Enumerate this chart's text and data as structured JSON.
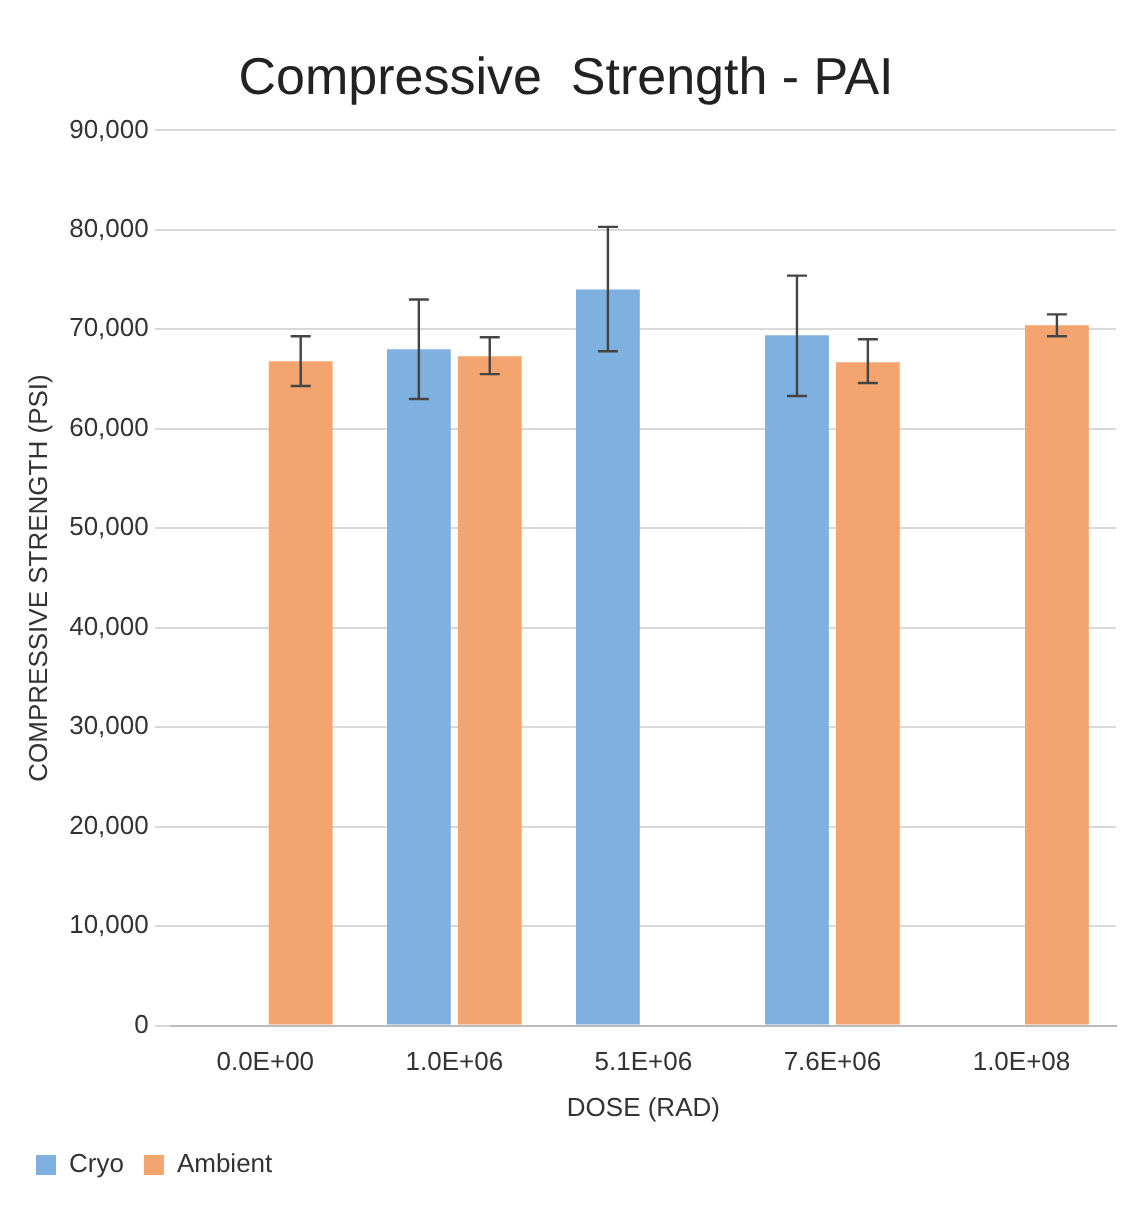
{
  "chart_data": {
    "type": "bar",
    "title": "Compressive  Strength - PAI",
    "xlabel": "DOSE (RAD)",
    "ylabel": "COMPRESSIVE STRENGTH (PSI)",
    "categories": [
      "0.0E+00",
      "1.0E+06",
      "5.1E+06",
      "7.6E+06",
      "1.0E+08"
    ],
    "series": [
      {
        "name": "Cryo",
        "color": "#7eb0e0",
        "values": [
          null,
          68000,
          74000,
          69400,
          null
        ],
        "errors": [
          null,
          [
            63000,
            73000
          ],
          [
            67800,
            80300
          ],
          [
            63300,
            75400
          ],
          null
        ]
      },
      {
        "name": "Ambient",
        "color": "#f4a46e",
        "values": [
          66800,
          67300,
          null,
          66700,
          70400
        ],
        "errors": [
          [
            64300,
            69300
          ],
          [
            65500,
            69200
          ],
          null,
          [
            64600,
            69000
          ],
          [
            69300,
            71500
          ]
        ]
      }
    ],
    "ylim": [
      0,
      90000
    ],
    "yticks": [
      {
        "value": 0,
        "label": "0"
      },
      {
        "value": 10000,
        "label": "10,000"
      },
      {
        "value": 20000,
        "label": "20,000"
      },
      {
        "value": 30000,
        "label": "30,000"
      },
      {
        "value": 40000,
        "label": "40,000"
      },
      {
        "value": 50000,
        "label": "50,000"
      },
      {
        "value": 60000,
        "label": "60,000"
      },
      {
        "value": 70000,
        "label": "70,000"
      },
      {
        "value": 80000,
        "label": "80,000"
      },
      {
        "value": 90000,
        "label": "90,000"
      }
    ],
    "grid": "y",
    "legend": "bottom left"
  }
}
